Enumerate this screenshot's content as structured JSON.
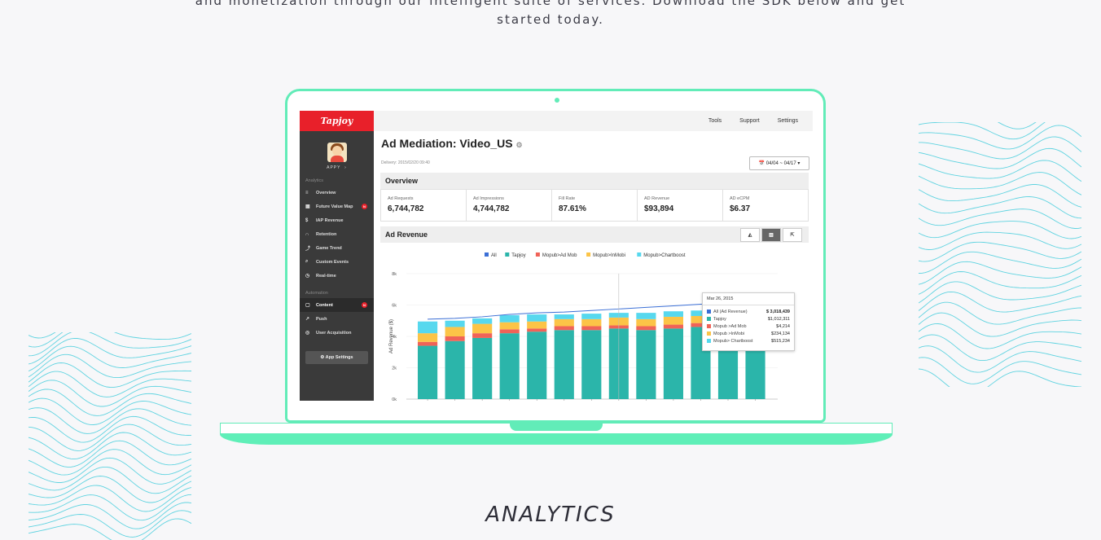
{
  "intro": {
    "line1": "and monetization through our intelligent suite of services. Download the SDK below and get",
    "line2": "started today."
  },
  "colors": {
    "accent": "#62ecb8",
    "brand_red": "#e8202a",
    "teal": "#2bb5aa",
    "topo": "#5fd3e0"
  },
  "dashboard": {
    "logo": "Tapjoy",
    "user": "APPY",
    "top_nav": [
      "Tools",
      "Support",
      "Settings"
    ],
    "sections": {
      "analytics": "Analytics",
      "automation": "Automation"
    },
    "nav_items": [
      {
        "icon": "list-icon",
        "glyph": "≡",
        "label": "Overview"
      },
      {
        "icon": "grid-icon",
        "glyph": "▦",
        "label": "Future Value Map",
        "badge": "N"
      },
      {
        "icon": "dollar-icon",
        "glyph": "$",
        "label": "IAP Revenue"
      },
      {
        "icon": "magnet-icon",
        "glyph": "∩",
        "label": "Retention"
      },
      {
        "icon": "trend-icon",
        "glyph": "⤴",
        "label": "Game Trend"
      },
      {
        "icon": "search-icon",
        "glyph": "⌕",
        "label": "Custom Events"
      },
      {
        "icon": "clock-icon",
        "glyph": "◷",
        "label": "Real-time"
      }
    ],
    "automation_items": [
      {
        "icon": "content-icon",
        "glyph": "▢",
        "label": "Content",
        "badge": "N",
        "active": true
      },
      {
        "icon": "push-icon",
        "glyph": "↗",
        "label": "Push"
      },
      {
        "icon": "target-icon",
        "glyph": "◎",
        "label": "User Acquisition"
      }
    ],
    "app_settings": "⚙ App Settings",
    "page_title": "Ad Mediation: Video_US",
    "delivery": "Delivery: 2015/02/20 09:40",
    "date_range": "📅 04/04 ~ 04/17 ▾",
    "overview_title": "Overview",
    "kpis": [
      {
        "label": "Ad Requests",
        "value": "6,744,782"
      },
      {
        "label": "Ad Impressions",
        "value": "4,744,782"
      },
      {
        "label": "Fill Rate",
        "value": "87.61%"
      },
      {
        "label": "AD Revenue",
        "value": "$93,894"
      },
      {
        "label": "AD eCPM",
        "value": "$6.37"
      }
    ],
    "revenue_title": "Ad Revenue",
    "tooltip": {
      "date": "Mar 26, 2015",
      "rows": [
        {
          "name": "All (Ad Revenue)",
          "value": "$ 3,018,439",
          "color": "#3b6fd6"
        },
        {
          "name": "Tapjoy",
          "value": "$1,012,311",
          "color": "#2bb5aa"
        },
        {
          "name": "Mopub >Ad Mob",
          "value": "$4,214",
          "color": "#f06358"
        },
        {
          "name": "Mopub >InMobi",
          "value": "$234,134",
          "color": "#fcc447"
        },
        {
          "name": "Mopub> Chartboost",
          "value": "$515,234",
          "color": "#57d8ee"
        }
      ]
    }
  },
  "chart_data": {
    "type": "bar",
    "ylabel": "Ad Revenue ($)",
    "ylim": [
      0,
      8000
    ],
    "yticks": [
      "0k",
      "2k",
      "4k",
      "6k",
      "8k"
    ],
    "legend": [
      {
        "name": "All",
        "color": "#3b6fd6"
      },
      {
        "name": "Tapjoy",
        "color": "#2bb5aa"
      },
      {
        "name": "Mopub>Ad Mob",
        "color": "#f06358"
      },
      {
        "name": "Mopub>InMobi",
        "color": "#fcc447"
      },
      {
        "name": "Mopub>Chartboost",
        "color": "#57d8ee"
      }
    ],
    "series": [
      {
        "name": "Tapjoy",
        "values": [
          3400,
          3700,
          3900,
          4200,
          4300,
          4400,
          4400,
          4500,
          4400,
          4500,
          4600,
          5200,
          5300
        ]
      },
      {
        "name": "Mopub>Ad Mob",
        "values": [
          250,
          300,
          300,
          250,
          200,
          250,
          250,
          200,
          250,
          250,
          250,
          350,
          250
        ]
      },
      {
        "name": "Mopub>InMobi",
        "values": [
          550,
          600,
          600,
          450,
          450,
          450,
          450,
          500,
          450,
          500,
          450,
          350,
          400
        ]
      },
      {
        "name": "Mopub>Chartboost",
        "values": [
          750,
          400,
          350,
          450,
          450,
          300,
          350,
          300,
          400,
          350,
          350,
          150,
          250
        ]
      }
    ],
    "all_line": [
      5100,
      5150,
      5250,
      5400,
      5500,
      5550,
      5650,
      5750,
      5850,
      5950,
      6050,
      6150,
      6250
    ]
  },
  "section_title": "ANALYTICS"
}
